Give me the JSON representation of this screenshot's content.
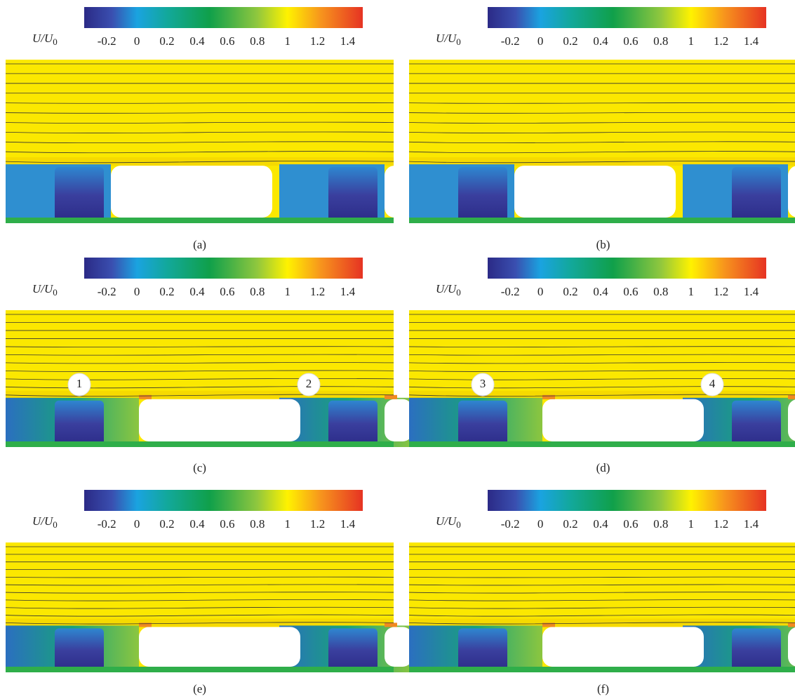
{
  "panels": [
    {
      "caption": "(a)",
      "colorbar": {
        "label": "U/U",
        "label_sub": "0",
        "lim": [
          -0.35,
          1.5
        ],
        "ticks": [
          -0.2,
          0,
          0.2,
          0.4,
          0.6,
          0.8,
          1,
          1.2,
          1.4
        ]
      },
      "markers": []
    },
    {
      "caption": "(b)",
      "colorbar": {
        "label": "U/U",
        "label_sub": "0",
        "lim": [
          -0.35,
          1.5
        ],
        "ticks": [
          -0.2,
          0,
          0.2,
          0.4,
          0.6,
          0.8,
          1,
          1.2,
          1.4
        ]
      },
      "markers": []
    },
    {
      "caption": "(c)",
      "colorbar": {
        "label": "U/U",
        "label_sub": "0",
        "lim": [
          -0.35,
          1.5
        ],
        "ticks": [
          -0.2,
          0,
          0.2,
          0.4,
          0.6,
          0.8,
          1,
          1.2,
          1.4
        ]
      },
      "markers": [
        "1",
        "2"
      ]
    },
    {
      "caption": "(d)",
      "colorbar": {
        "label": "U/U",
        "label_sub": "0",
        "lim": [
          -0.35,
          1.5
        ],
        "ticks": [
          -0.2,
          0,
          0.2,
          0.4,
          0.6,
          0.8,
          1,
          1.2,
          1.4
        ]
      },
      "markers": [
        "3",
        "4"
      ]
    },
    {
      "caption": "(e)",
      "colorbar": {
        "label": "U/U",
        "label_sub": "0",
        "lim": [
          -0.35,
          1.5
        ],
        "ticks": [
          -0.2,
          0,
          0.2,
          0.4,
          0.6,
          0.8,
          1,
          1.2,
          1.4
        ]
      },
      "markers": []
    },
    {
      "caption": "(f)",
      "colorbar": {
        "label": "U/U",
        "label_sub": "0",
        "lim": [
          -0.35,
          1.5
        ],
        "ticks": [
          -0.2,
          0,
          0.2,
          0.4,
          0.6,
          0.8,
          1,
          1.2,
          1.4
        ]
      },
      "markers": []
    }
  ]
}
